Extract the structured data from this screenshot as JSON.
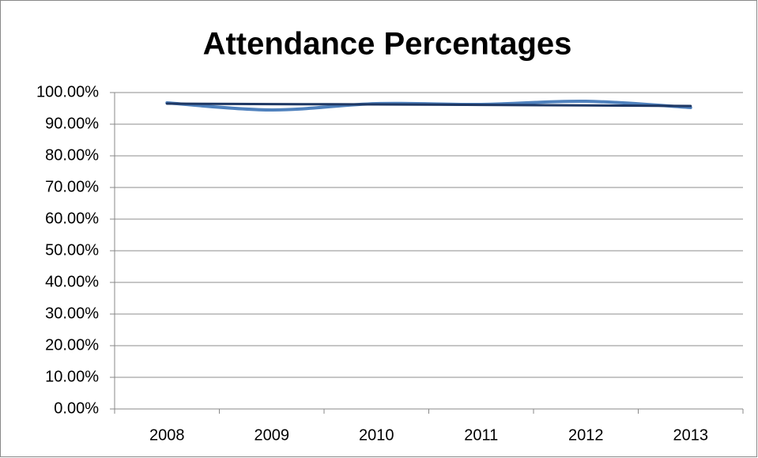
{
  "chart_data": {
    "type": "line",
    "title": "Attendance Percentages",
    "categories": [
      "2008",
      "2009",
      "2010",
      "2011",
      "2012",
      "2013"
    ],
    "series": [
      {
        "color": "#4f81bd",
        "values": [
          96.75,
          94.5,
          96.5,
          96.25,
          97.25,
          95.25
        ]
      },
      {
        "color": "#1f3864",
        "values": [
          96.5,
          96.35,
          96.25,
          96.1,
          95.95,
          95.75
        ]
      }
    ],
    "ylim": [
      0,
      100
    ],
    "yticks": [
      {
        "value": 0,
        "label": "0.00%"
      },
      {
        "value": 10,
        "label": "10.00%"
      },
      {
        "value": 20,
        "label": "20.00%"
      },
      {
        "value": 30,
        "label": "30.00%"
      },
      {
        "value": 40,
        "label": "40.00%"
      },
      {
        "value": 50,
        "label": "50.00%"
      },
      {
        "value": 60,
        "label": "60.00%"
      },
      {
        "value": 70,
        "label": "70.00%"
      },
      {
        "value": 80,
        "label": "80.00%"
      },
      {
        "value": 90,
        "label": "90.00%"
      },
      {
        "value": 100,
        "label": "100.00%"
      }
    ],
    "grid": true
  }
}
